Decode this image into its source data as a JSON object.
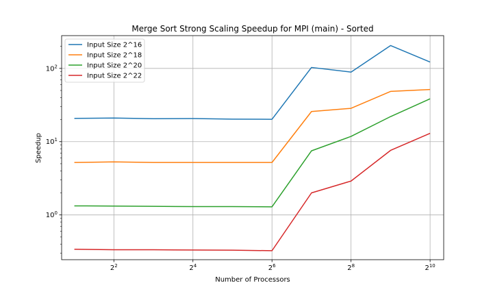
{
  "chart_data": {
    "type": "line",
    "title": "Merge Sort Strong Scaling Speedup for MPI (main) - Sorted",
    "xlabel": "Number of Processors",
    "ylabel": "Speedup",
    "x_scale": "log2",
    "y_scale": "log10",
    "x": [
      2,
      4,
      8,
      16,
      32,
      64,
      128,
      256,
      512,
      1024
    ],
    "xlim": [
      1.6,
      1300
    ],
    "ylim": [
      0.245,
      280
    ],
    "x_ticks": [
      {
        "value": 4,
        "base": "2",
        "exp": "2"
      },
      {
        "value": 16,
        "base": "2",
        "exp": "4"
      },
      {
        "value": 64,
        "base": "2",
        "exp": "6"
      },
      {
        "value": 256,
        "base": "2",
        "exp": "8"
      },
      {
        "value": 1024,
        "base": "2",
        "exp": "10"
      }
    ],
    "y_ticks": [
      {
        "value": 1,
        "base": "10",
        "exp": "0"
      },
      {
        "value": 10,
        "base": "10",
        "exp": "1"
      },
      {
        "value": 100,
        "base": "10",
        "exp": "2"
      }
    ],
    "grid": true,
    "legend_position": "top-left",
    "series": [
      {
        "name": "Input Size 2^16",
        "color": "#1f77b4",
        "values": [
          20.8,
          21.0,
          20.6,
          20.7,
          20.3,
          20.2,
          103,
          89,
          205,
          122
        ]
      },
      {
        "name": "Input Size 2^18",
        "color": "#ff7f0e",
        "values": [
          5.2,
          5.3,
          5.2,
          5.2,
          5.2,
          5.2,
          25.8,
          28.5,
          48.5,
          51.5
        ]
      },
      {
        "name": "Input Size 2^20",
        "color": "#2ca02c",
        "values": [
          1.33,
          1.32,
          1.31,
          1.3,
          1.3,
          1.29,
          7.5,
          11.8,
          22,
          38.5
        ]
      },
      {
        "name": "Input Size 2^22",
        "color": "#d62728",
        "values": [
          0.34,
          0.335,
          0.335,
          0.332,
          0.33,
          0.325,
          2.0,
          2.9,
          7.6,
          13
        ]
      }
    ]
  }
}
